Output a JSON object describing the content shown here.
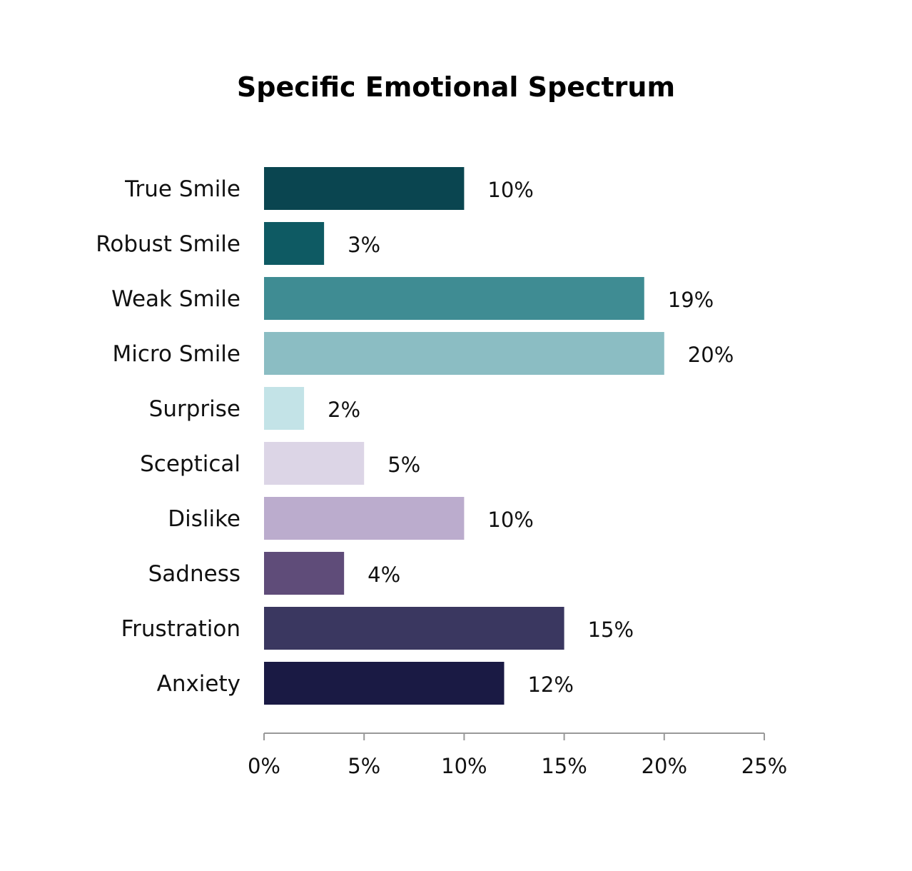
{
  "chart_data": {
    "type": "bar",
    "orientation": "horizontal",
    "title": "Specific Emotional Spectrum",
    "xlabel": "",
    "ylabel": "",
    "xlim": [
      0,
      25
    ],
    "grid": false,
    "legend": "none",
    "x_ticks": [
      0,
      5,
      10,
      15,
      20,
      25
    ],
    "x_tick_labels": [
      "0%",
      "5%",
      "10%",
      "15%",
      "20%",
      "25%"
    ],
    "categories": [
      "True Smile",
      "Robust Smile",
      "Weak Smile",
      "Micro Smile",
      "Surprise",
      "Sceptical",
      "Dislike",
      "Sadness",
      "Frustration",
      "Anxiety"
    ],
    "values": [
      10,
      3,
      19,
      20,
      2,
      5,
      10,
      4,
      15,
      12
    ],
    "value_labels": [
      "10%",
      "3%",
      "19%",
      "20%",
      "2%",
      "5%",
      "10%",
      "4%",
      "15%",
      "12%"
    ],
    "colors": [
      "#0a4550",
      "#0e5a63",
      "#3f8c93",
      "#8bbdc3",
      "#c3e3e7",
      "#dcd5e6",
      "#bbaccd",
      "#5f4c79",
      "#3a3760",
      "#1a1a44"
    ]
  }
}
